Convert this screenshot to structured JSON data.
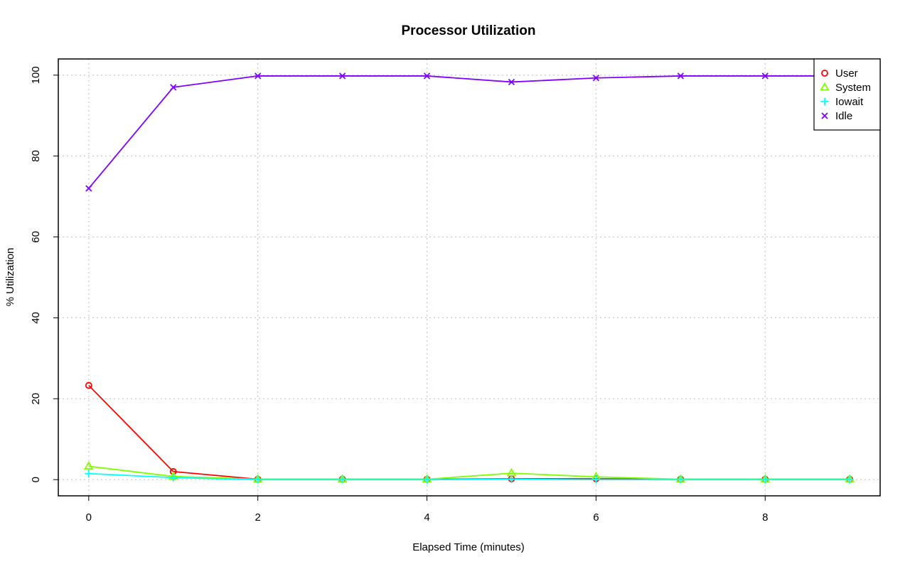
{
  "chart_data": {
    "type": "line",
    "title": "Processor Utilization",
    "xlabel": "Elapsed Time (minutes)",
    "ylabel": "% Utilization",
    "x": [
      0,
      1,
      2,
      3,
      4,
      5,
      6,
      7,
      8,
      9
    ],
    "xlim": [
      -0.36,
      9.36
    ],
    "ylim": [
      -4,
      104
    ],
    "xticks": [
      0,
      2,
      4,
      6,
      8
    ],
    "yticks": [
      0,
      20,
      40,
      60,
      80,
      100
    ],
    "grid": true,
    "legend_position": "top-right",
    "series": [
      {
        "name": "User",
        "color": "#ff0000",
        "marker": "circle",
        "values": [
          23.3,
          2.0,
          0.1,
          0.1,
          0.1,
          0.2,
          0.2,
          0.1,
          0.1,
          0.1
        ]
      },
      {
        "name": "System",
        "color": "#80ff00",
        "marker": "triangle",
        "values": [
          3.3,
          0.8,
          0.1,
          0.1,
          0.1,
          1.6,
          0.7,
          0.1,
          0.1,
          0.1
        ]
      },
      {
        "name": "Iowait",
        "color": "#00ffff",
        "marker": "plus",
        "values": [
          1.5,
          0.5,
          0.0,
          0.0,
          0.0,
          0.1,
          0.0,
          0.0,
          0.0,
          0.0
        ]
      },
      {
        "name": "Idle",
        "color": "#8000ff",
        "marker": "x",
        "values": [
          72.0,
          97.0,
          99.8,
          99.8,
          99.8,
          98.3,
          99.3,
          99.8,
          99.8,
          99.8
        ]
      }
    ]
  }
}
